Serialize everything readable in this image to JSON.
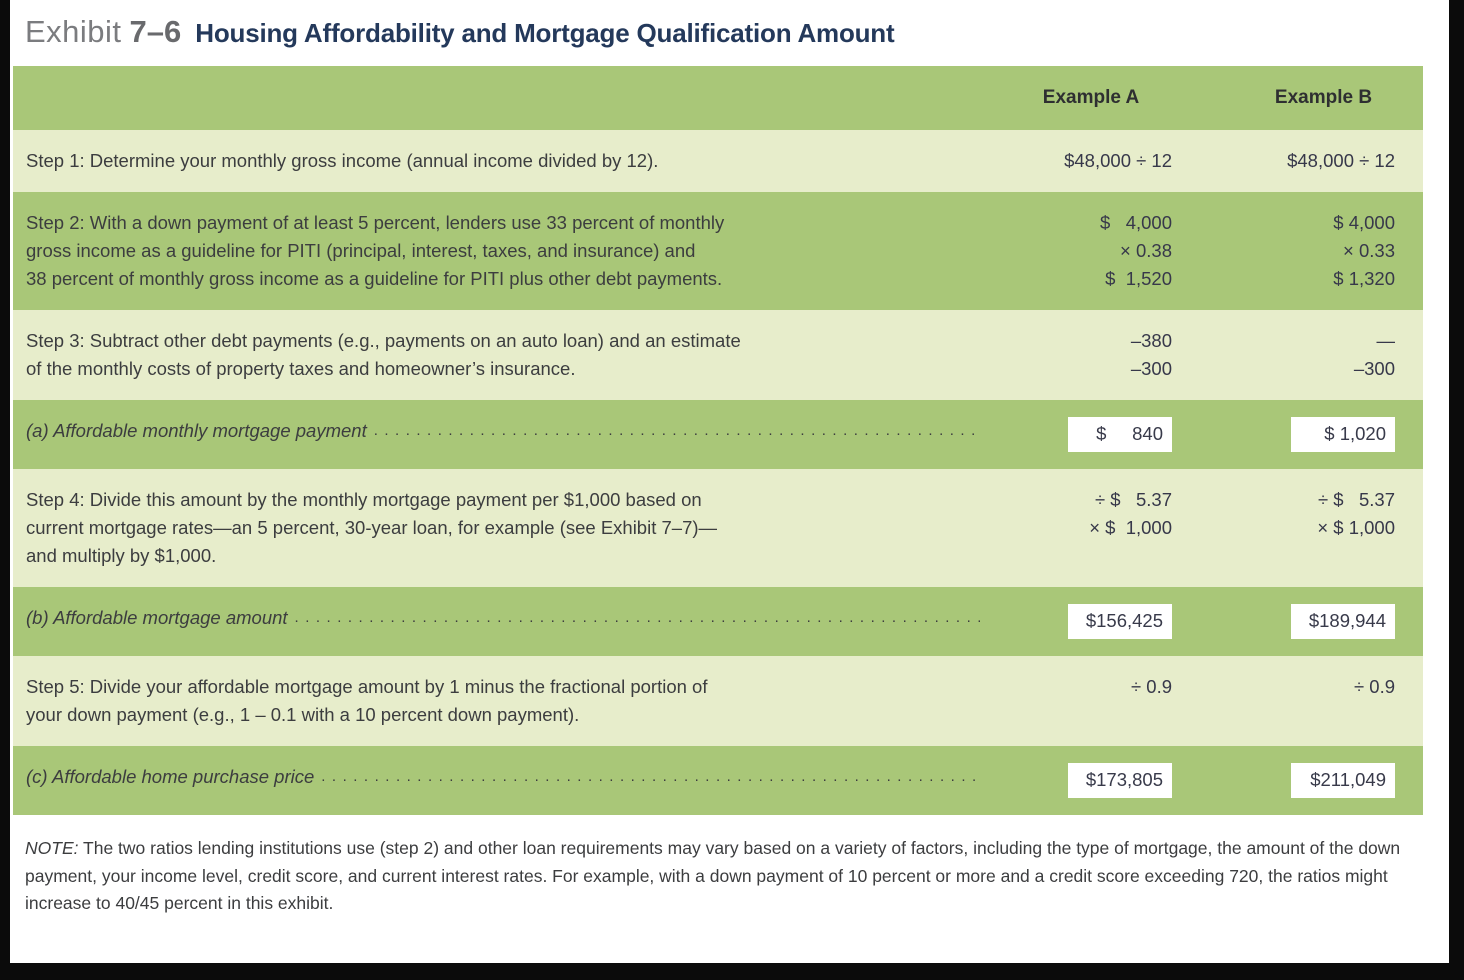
{
  "title": {
    "exhibit_word": "Exhibit",
    "exhibit_number": "7–6",
    "heading": "Housing Affordability and Mortgage Qualification Amount"
  },
  "table": {
    "header": {
      "col_a": "Example A",
      "col_b": "Example B"
    },
    "leader_dots": "......................................................................................................................................................",
    "rows": [
      {
        "label_lines": [
          "Step 1: Determine your monthly gross income (annual income divided by 12)."
        ],
        "a": [
          "$48,000 ÷ 12"
        ],
        "b": [
          "$48,000 ÷ 12"
        ]
      },
      {
        "label_lines": [
          "Step 2: With a down payment of at least 5 percent, lenders use 33 percent of monthly",
          "gross income as a guideline for PITI (principal, interest, taxes, and insurance) and",
          "38 percent of monthly gross income as a guideline for PITI plus other debt payments."
        ],
        "a": [
          "$   4,000",
          "× 0.38",
          "$  1,520"
        ],
        "b": [
          "$ 4,000",
          "× 0.33",
          "$ 1,320"
        ]
      },
      {
        "label_lines": [
          "Step 3: Subtract other debt payments (e.g., payments on an auto loan) and an estimate",
          "of the monthly costs of property taxes and homeowner’s insurance."
        ],
        "a": [
          "–380",
          "–300"
        ],
        "b": [
          "—",
          "–300"
        ]
      },
      {
        "label": "(a) Affordable monthly mortgage payment",
        "a_box": "$     840",
        "b_box": "$ 1,020"
      },
      {
        "label_lines": [
          "Step 4: Divide this amount by the monthly mortgage payment per $1,000 based on",
          "current mortgage rates—an 5 percent, 30-year loan, for example (see Exhibit 7–7)—",
          "and multiply by $1,000."
        ],
        "a": [
          "÷ $   5.37",
          "× $  1,000"
        ],
        "b": [
          "÷ $   5.37",
          "× $ 1,000"
        ]
      },
      {
        "label": "(b) Affordable mortgage amount",
        "a_box": "$156,425",
        "b_box": "$189,944"
      },
      {
        "label_lines": [
          "Step 5: Divide your affordable mortgage amount by 1 minus the fractional portion of",
          "your down payment (e.g., 1 – 0.1 with a 10 percent down payment)."
        ],
        "a": [
          "÷ 0.9"
        ],
        "b": [
          "÷ 0.9"
        ]
      },
      {
        "label": "(c) Affordable home purchase price",
        "a_box": "$173,805",
        "b_box": "$211,049"
      }
    ]
  },
  "note": {
    "label": "NOTE:",
    "text": " The two ratios lending institutions use (step 2) and other loan requirements may vary based on a variety of factors, including the type of mortgage, the amount of the down payment, your income level, credit score, and current interest rates. For example, with a down payment of 10 percent or more and a credit score exceeding 720, the ratios might increase to 40/45 percent in this exhibit."
  },
  "colors": {
    "band_medium": "#a9c778",
    "band_light": "#e7edcb",
    "heading_navy": "#24395b",
    "exhibit_gray": "#7b7c7f",
    "frame_black": "#0b0b0b"
  }
}
